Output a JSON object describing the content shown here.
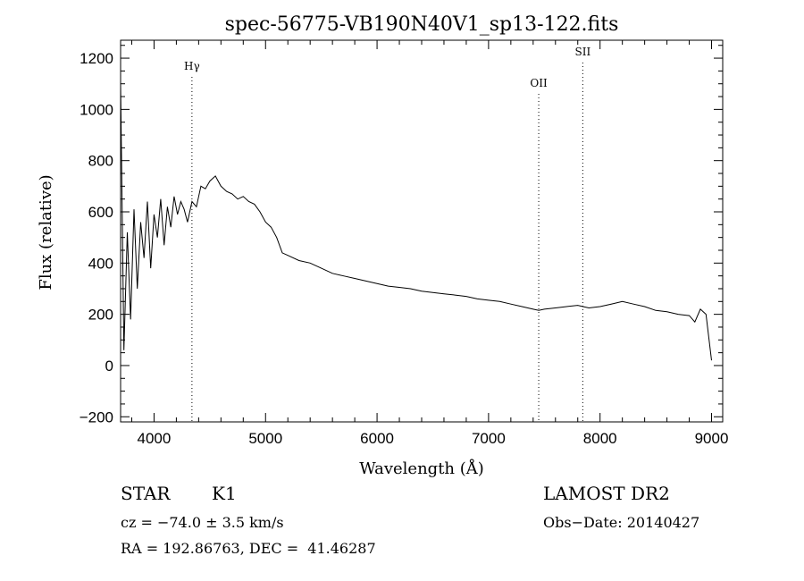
{
  "chart_data": {
    "type": "line",
    "title": "spec-56775-VB190N40V1_sp13-122.fits",
    "xlabel": "Wavelength (Å)",
    "ylabel": "Flux (relative)",
    "xlim": [
      3700,
      9100
    ],
    "ylim": [
      -220,
      1270
    ],
    "xticks": [
      4000,
      5000,
      6000,
      7000,
      8000,
      9000
    ],
    "yticks": [
      -200,
      0,
      200,
      400,
      600,
      800,
      1000,
      1200
    ],
    "line_color": "#000000",
    "series": [
      {
        "x": [
          3700,
          3730,
          3760,
          3790,
          3820,
          3850,
          3880,
          3910,
          3940,
          3970,
          4000,
          4030,
          4060,
          4090,
          4120,
          4150,
          4180,
          4210,
          4240,
          4270,
          4300,
          4340,
          4380,
          4420,
          4460,
          4500,
          4550,
          4600,
          4650,
          4700,
          4750,
          4800,
          4850,
          4900,
          4950,
          5000,
          5050,
          5100,
          5150,
          5200,
          5300,
          5400,
          5500,
          5600,
          5700,
          5800,
          5900,
          6000,
          6100,
          6200,
          6300,
          6400,
          6500,
          6600,
          6700,
          6800,
          6900,
          7000,
          7100,
          7200,
          7300,
          7400,
          7450,
          7500,
          7600,
          7700,
          7800,
          7900,
          8000,
          8100,
          8200,
          8300,
          8400,
          8500,
          8600,
          8700,
          8800,
          8850,
          8900,
          8950,
          9000
        ],
        "y": [
          1100,
          60,
          520,
          180,
          610,
          300,
          560,
          420,
          640,
          380,
          590,
          500,
          650,
          470,
          620,
          540,
          660,
          590,
          640,
          610,
          560,
          640,
          620,
          700,
          690,
          720,
          740,
          700,
          680,
          670,
          650,
          660,
          640,
          630,
          600,
          560,
          540,
          500,
          440,
          430,
          410,
          400,
          380,
          360,
          350,
          340,
          330,
          320,
          310,
          305,
          300,
          290,
          285,
          280,
          275,
          270,
          260,
          255,
          250,
          240,
          230,
          220,
          215,
          220,
          225,
          230,
          235,
          225,
          230,
          240,
          250,
          240,
          230,
          215,
          210,
          200,
          195,
          170,
          220,
          200,
          20
        ]
      }
    ],
    "lines": [
      {
        "label": "Hγ",
        "x": 4340
      },
      {
        "label": "OII",
        "x": 7450
      },
      {
        "label": "SII",
        "x": 7845
      }
    ]
  },
  "info": {
    "object_class": "STAR",
    "subclass": "K1",
    "survey": "LAMOST DR2",
    "cz": "cz = −74.0 ± 3.5 km/s",
    "obs_date": "Obs−Date: 20140427",
    "radec": "RA = 192.86763, DEC =  41.46287"
  }
}
